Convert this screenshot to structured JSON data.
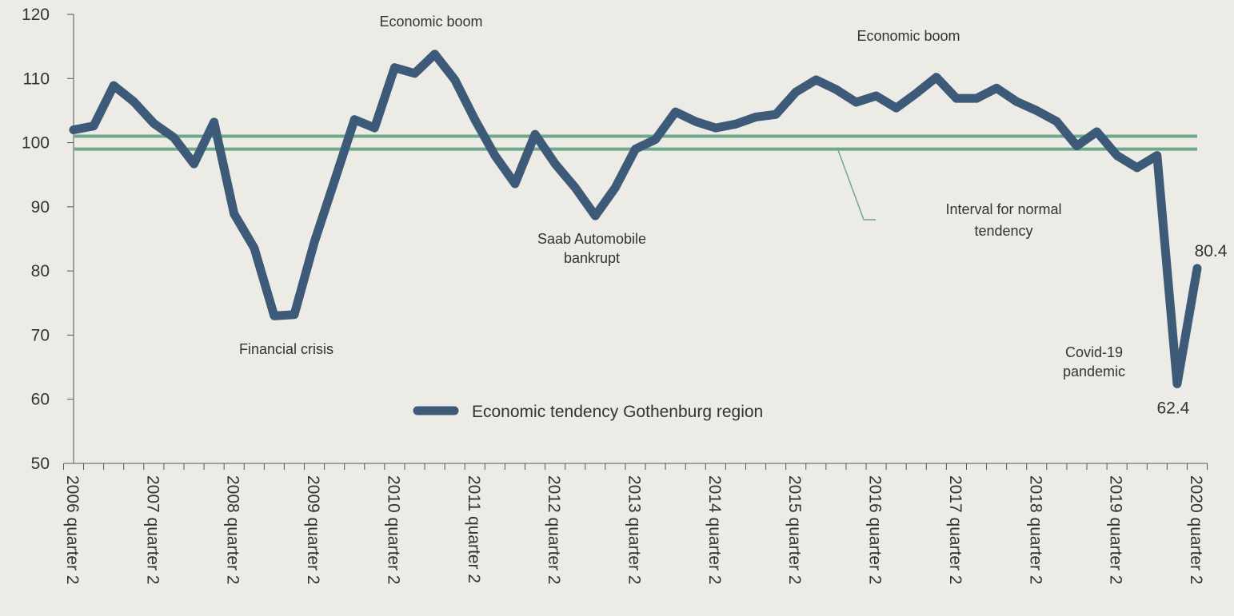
{
  "chart_data": {
    "type": "line",
    "categories": [
      "2006 quarter 2",
      null,
      null,
      null,
      "2007 quarter 2",
      null,
      null,
      null,
      "2008 quarter 2",
      null,
      null,
      null,
      "2009 quarter 2",
      null,
      null,
      null,
      "2010 quarter 2",
      null,
      null,
      null,
      "2011 quarter 2",
      null,
      null,
      null,
      "2012 quarter 2",
      null,
      null,
      null,
      "2013 quarter 2",
      null,
      null,
      null,
      "2014 quarter 2",
      null,
      null,
      null,
      "2015 quarter 2",
      null,
      null,
      null,
      "2016 quarter 2",
      null,
      null,
      null,
      "2017 quarter 2",
      null,
      null,
      null,
      "2018 quarter 2",
      null,
      null,
      null,
      "2019 quarter 2",
      null,
      null,
      null,
      "2020 quarter 2"
    ],
    "series": [
      {
        "name": "Economic tendency Gothenburg region",
        "color": "#3d5a78",
        "values": [
          102,
          102.6,
          108.9,
          106.4,
          103,
          100.8,
          96.7,
          103.2,
          88.9,
          83.6,
          73,
          73.2,
          84.5,
          94,
          103.6,
          102.3,
          111.7,
          110.8,
          113.8,
          109.8,
          103.6,
          98,
          93.6,
          101.3,
          96.7,
          93,
          88.6,
          93,
          99,
          100.5,
          104.8,
          103.3,
          102.3,
          102.9,
          104,
          104.4,
          107.9,
          109.8,
          108.3,
          106.3,
          107.3,
          105.4,
          107.7,
          110.2,
          106.9,
          106.9,
          108.5,
          106.4,
          105,
          103.3,
          99.5,
          101.7,
          98,
          96.1,
          98,
          62.4,
          80.4
        ]
      }
    ],
    "ylim": [
      50,
      120
    ],
    "yticks": [
      50,
      60,
      70,
      80,
      90,
      100,
      110,
      120
    ],
    "normal_interval": {
      "values": [
        99,
        101
      ],
      "color": "#6fa98a"
    },
    "annotations": [
      {
        "text": [
          "Economic boom"
        ],
        "index": 18
      },
      {
        "text": [
          "Financial crisis"
        ],
        "index": 10
      },
      {
        "text": [
          "Saab Automobile",
          "bankrupt"
        ],
        "index": 26
      },
      {
        "text": [
          "Economic boom"
        ],
        "index": 43
      },
      {
        "text": [
          "Interval for normal",
          "tendency"
        ],
        "index": 46
      },
      {
        "text": [
          "Covid-19",
          "pandemic"
        ],
        "index": 55
      }
    ],
    "labeled_points": [
      55,
      56
    ]
  }
}
